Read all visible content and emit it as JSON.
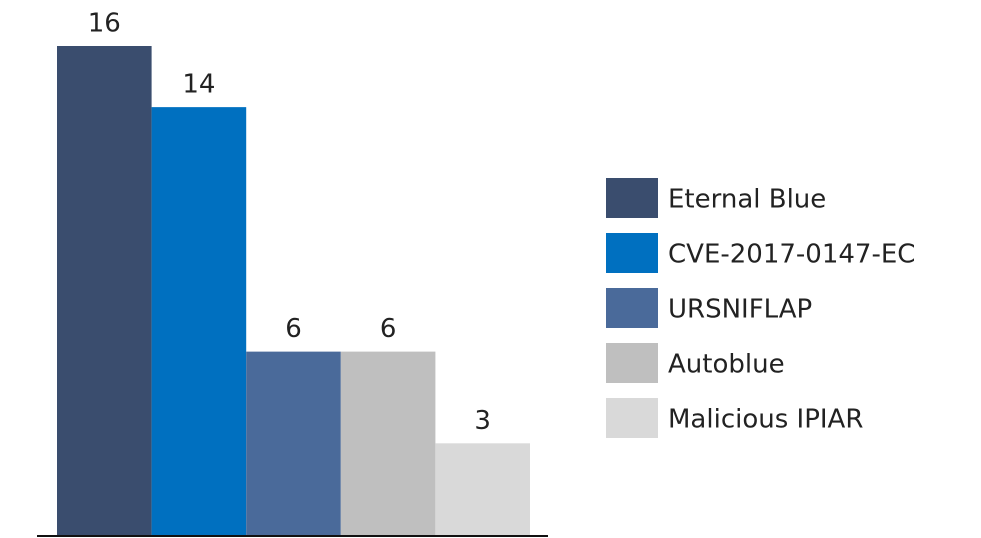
{
  "chart_data": {
    "type": "bar",
    "series": [
      {
        "name": "Eternal Blue",
        "color": "#3a4d6e",
        "values": [
          16
        ]
      },
      {
        "name": "CVE-2017-0147-EC",
        "color": "#0070c0",
        "values": [
          14
        ]
      },
      {
        "name": "URSNIFLAP",
        "color": "#4a6a9a",
        "values": [
          6
        ]
      },
      {
        "name": "Autoblue",
        "color": "#bfbfbf",
        "values": [
          6
        ]
      },
      {
        "name": "Malicious IPIAR",
        "color": "#d9d9d9",
        "values": [
          3
        ]
      }
    ],
    "legend": "right"
  }
}
